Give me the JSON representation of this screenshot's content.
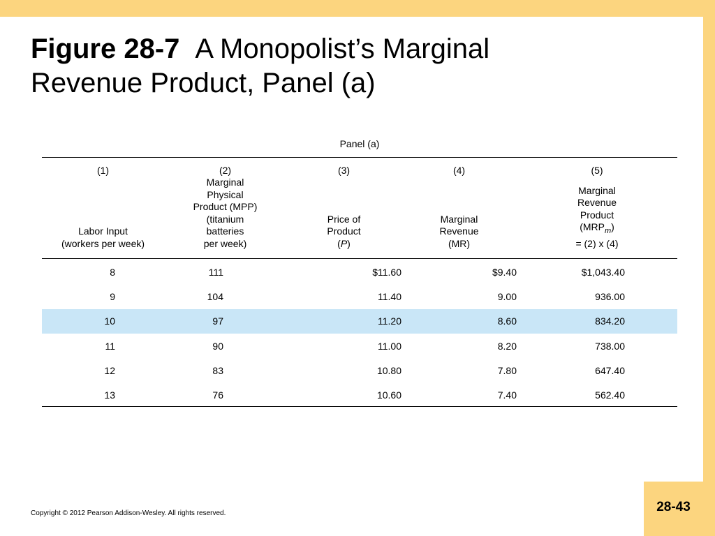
{
  "slide": {
    "title_bold": "Figure 28-7",
    "title_rest_line1": "A Monopolist’s Marginal",
    "title_line2": "Revenue Product, Panel (a)",
    "copyright": "Copyright © 2012 Pearson Addison-Wesley. All rights reserved.",
    "page_number": "28-43"
  },
  "table": {
    "panel_label": "Panel (a)",
    "columns": [
      {
        "number": "(1)",
        "label_lines": [
          "Labor Input",
          "(workers per week)"
        ]
      },
      {
        "number": "(2)",
        "label_lines": [
          "Marginal",
          "Physical",
          "Product (MPP)",
          "(titanium",
          "batteries",
          "per week)"
        ]
      },
      {
        "number": "(3)",
        "label_lines": [
          "Price of",
          "Product",
          "(P)"
        ]
      },
      {
        "number": "(4)",
        "label_lines": [
          "Marginal",
          "Revenue",
          "(MR)"
        ]
      },
      {
        "number": "(5)",
        "label_lines": [
          "Marginal",
          "Revenue",
          "Product",
          "(MRPm)",
          "= (2) x (4)"
        ]
      }
    ],
    "rows": [
      {
        "labor": "8",
        "mpp": "111",
        "price": "$11.60",
        "mr": "$9.40",
        "mrp": "$1,043.40",
        "highlight": false
      },
      {
        "labor": "9",
        "mpp": "104",
        "price": "11.40",
        "mr": "9.00",
        "mrp": "936.00",
        "highlight": false
      },
      {
        "labor": "10",
        "mpp": "97",
        "price": "11.20",
        "mr": "8.60",
        "mrp": "834.20",
        "highlight": true
      },
      {
        "labor": "11",
        "mpp": "90",
        "price": "11.00",
        "mr": "8.20",
        "mrp": "738.00",
        "highlight": false
      },
      {
        "labor": "12",
        "mpp": "83",
        "price": "10.80",
        "mr": "7.80",
        "mrp": "647.40",
        "highlight": false
      },
      {
        "labor": "13",
        "mpp": "76",
        "price": "10.60",
        "mr": "7.40",
        "mrp": "562.40",
        "highlight": false
      }
    ],
    "highlight_color": "#c9e6f7"
  },
  "colors": {
    "accent": "#fcd57f"
  }
}
